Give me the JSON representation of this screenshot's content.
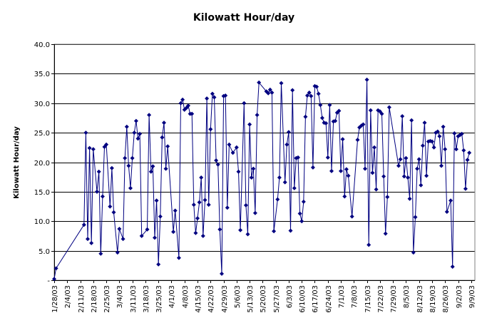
{
  "chart_data": {
    "type": "line",
    "title": "Kilowatt Hour/day",
    "xlabel": "",
    "ylabel": "Kilowatt Hour/day",
    "ylim": [
      0,
      40
    ],
    "yticks": [
      "-",
      "5.0",
      "10.0",
      "15.0",
      "20.0",
      "25.0",
      "30.0",
      "35.0",
      "40.0"
    ],
    "yticks_values": [
      0,
      5,
      10,
      15,
      20,
      25,
      30,
      35,
      40
    ],
    "x_start": "2003-01-28",
    "x_end": "2003-09-11",
    "xticks": [
      "1/28/03",
      "2/4/03",
      "2/11/03",
      "2/18/03",
      "2/25/03",
      "3/4/03",
      "3/11/03",
      "3/18/03",
      "3/25/03",
      "4/1/03",
      "4/8/03",
      "4/15/03",
      "4/22/03",
      "4/29/03",
      "5/6/03",
      "5/13/03",
      "5/20/03",
      "5/27/03",
      "6/3/03",
      "6/10/03",
      "6/17/03",
      "6/24/03",
      "7/1/03",
      "7/8/03",
      "7/15/03",
      "7/22/03",
      "7/29/03",
      "8/5/03",
      "8/12/03",
      "8/19/03",
      "8/26/03",
      "9/2/03",
      "9/9/03"
    ],
    "xticks_dates": [
      "2003-01-28",
      "2003-02-04",
      "2003-02-11",
      "2003-02-18",
      "2003-02-25",
      "2003-03-04",
      "2003-03-11",
      "2003-03-18",
      "2003-03-25",
      "2003-04-01",
      "2003-04-08",
      "2003-04-15",
      "2003-04-22",
      "2003-04-29",
      "2003-05-06",
      "2003-05-13",
      "2003-05-20",
      "2003-05-27",
      "2003-06-03",
      "2003-06-10",
      "2003-06-17",
      "2003-06-24",
      "2003-07-01",
      "2003-07-08",
      "2003-07-15",
      "2003-07-22",
      "2003-07-29",
      "2003-08-05",
      "2003-08-12",
      "2003-08-19",
      "2003-08-26",
      "2003-09-02",
      "2003-09-09"
    ],
    "grid": true,
    "legend": "none",
    "series": [
      {
        "color": "#000080",
        "marker": "diamond",
        "points": [
          [
            "2003-01-28",
            0.2
          ],
          [
            "2003-01-29",
            2.0
          ],
          [
            "2003-02-13",
            9.4
          ],
          [
            "2003-02-14",
            25.0
          ],
          [
            "2003-02-15",
            7.0
          ],
          [
            "2003-02-16",
            22.4
          ],
          [
            "2003-02-17",
            6.3
          ],
          [
            "2003-02-18",
            22.2
          ],
          [
            "2003-02-20",
            15.0
          ],
          [
            "2003-02-21",
            18.4
          ],
          [
            "2003-02-22",
            4.5
          ],
          [
            "2003-02-23",
            14.2
          ],
          [
            "2003-02-24",
            22.6
          ],
          [
            "2003-02-25",
            23.0
          ],
          [
            "2003-02-27",
            12.5
          ],
          [
            "2003-02-28",
            19.0
          ],
          [
            "2003-03-01",
            11.5
          ],
          [
            "2003-03-03",
            4.7
          ],
          [
            "2003-03-04",
            8.7
          ],
          [
            "2003-03-06",
            7.0
          ],
          [
            "2003-03-07",
            20.7
          ],
          [
            "2003-03-08",
            26.0
          ],
          [
            "2003-03-09",
            19.4
          ],
          [
            "2003-03-10",
            15.6
          ],
          [
            "2003-03-11",
            20.7
          ],
          [
            "2003-03-12",
            25.0
          ],
          [
            "2003-03-13",
            27.0
          ],
          [
            "2003-03-14",
            24.0
          ],
          [
            "2003-03-15",
            24.8
          ],
          [
            "2003-03-16",
            7.5
          ],
          [
            "2003-03-19",
            8.6
          ],
          [
            "2003-03-20",
            28.0
          ],
          [
            "2003-03-21",
            18.4
          ],
          [
            "2003-03-22",
            19.3
          ],
          [
            "2003-03-23",
            7.2
          ],
          [
            "2003-03-24",
            13.5
          ],
          [
            "2003-03-25",
            2.7
          ],
          [
            "2003-03-26",
            10.8
          ],
          [
            "2003-03-27",
            24.2
          ],
          [
            "2003-03-28",
            26.7
          ],
          [
            "2003-03-29",
            18.9
          ],
          [
            "2003-03-30",
            22.7
          ],
          [
            "2003-04-02",
            8.2
          ],
          [
            "2003-04-03",
            11.8
          ],
          [
            "2003-04-05",
            3.8
          ],
          [
            "2003-04-06",
            30.0
          ],
          [
            "2003-04-07",
            30.6
          ],
          [
            "2003-04-08",
            28.9
          ],
          [
            "2003-04-09",
            29.2
          ],
          [
            "2003-04-10",
            29.6
          ],
          [
            "2003-04-11",
            28.2
          ],
          [
            "2003-04-12",
            28.2
          ],
          [
            "2003-04-13",
            12.8
          ],
          [
            "2003-04-14",
            8.0
          ],
          [
            "2003-04-15",
            10.5
          ],
          [
            "2003-04-16",
            13.2
          ],
          [
            "2003-04-17",
            17.4
          ],
          [
            "2003-04-18",
            7.5
          ],
          [
            "2003-04-19",
            13.6
          ],
          [
            "2003-04-20",
            30.8
          ],
          [
            "2003-04-21",
            12.8
          ],
          [
            "2003-04-22",
            25.6
          ],
          [
            "2003-04-23",
            31.6
          ],
          [
            "2003-04-24",
            31.0
          ],
          [
            "2003-04-25",
            20.3
          ],
          [
            "2003-04-26",
            19.6
          ],
          [
            "2003-04-27",
            8.6
          ],
          [
            "2003-04-28",
            1.1
          ],
          [
            "2003-04-29",
            31.2
          ],
          [
            "2003-04-30",
            31.3
          ],
          [
            "2003-05-01",
            12.3
          ],
          [
            "2003-05-02",
            23.0
          ],
          [
            "2003-05-04",
            21.6
          ],
          [
            "2003-05-06",
            22.5
          ],
          [
            "2003-05-07",
            18.4
          ],
          [
            "2003-05-08",
            8.5
          ],
          [
            "2003-05-10",
            30.0
          ],
          [
            "2003-05-11",
            12.7
          ],
          [
            "2003-05-12",
            7.8
          ],
          [
            "2003-05-13",
            26.4
          ],
          [
            "2003-05-14",
            17.4
          ],
          [
            "2003-05-15",
            18.9
          ],
          [
            "2003-05-16",
            11.4
          ],
          [
            "2003-05-17",
            28.0
          ],
          [
            "2003-05-18",
            33.5
          ],
          [
            "2003-05-22",
            32.0
          ],
          [
            "2003-05-23",
            31.7
          ],
          [
            "2003-05-24",
            32.3
          ],
          [
            "2003-05-25",
            31.8
          ],
          [
            "2003-05-26",
            8.3
          ],
          [
            "2003-05-28",
            13.7
          ],
          [
            "2003-05-29",
            17.4
          ],
          [
            "2003-05-30",
            33.4
          ],
          [
            "2003-06-01",
            16.6
          ],
          [
            "2003-06-02",
            23.0
          ],
          [
            "2003-06-03",
            25.1
          ],
          [
            "2003-06-04",
            8.4
          ],
          [
            "2003-06-05",
            32.2
          ],
          [
            "2003-06-06",
            15.6
          ],
          [
            "2003-06-07",
            20.7
          ],
          [
            "2003-06-08",
            20.8
          ],
          [
            "2003-06-09",
            11.3
          ],
          [
            "2003-06-10",
            10.0
          ],
          [
            "2003-06-11",
            13.3
          ],
          [
            "2003-06-12",
            27.7
          ],
          [
            "2003-06-13",
            31.3
          ],
          [
            "2003-06-14",
            31.8
          ],
          [
            "2003-06-15",
            31.2
          ],
          [
            "2003-06-16",
            19.1
          ],
          [
            "2003-06-17",
            32.9
          ],
          [
            "2003-06-18",
            32.8
          ],
          [
            "2003-06-19",
            31.6
          ],
          [
            "2003-06-20",
            29.7
          ],
          [
            "2003-06-21",
            27.5
          ],
          [
            "2003-06-22",
            26.7
          ],
          [
            "2003-06-23",
            26.6
          ],
          [
            "2003-06-24",
            20.8
          ],
          [
            "2003-06-25",
            29.7
          ],
          [
            "2003-06-26",
            18.5
          ],
          [
            "2003-06-27",
            26.9
          ],
          [
            "2003-06-28",
            27.0
          ],
          [
            "2003-06-29",
            28.4
          ],
          [
            "2003-06-30",
            28.7
          ],
          [
            "2003-07-01",
            18.5
          ],
          [
            "2003-07-02",
            23.9
          ],
          [
            "2003-07-03",
            14.2
          ],
          [
            "2003-07-04",
            18.8
          ],
          [
            "2003-07-05",
            17.7
          ],
          [
            "2003-07-07",
            10.8
          ],
          [
            "2003-07-10",
            23.8
          ],
          [
            "2003-07-11",
            25.9
          ],
          [
            "2003-07-12",
            26.2
          ],
          [
            "2003-07-13",
            26.4
          ],
          [
            "2003-07-14",
            18.9
          ],
          [
            "2003-07-15",
            34.0
          ],
          [
            "2003-07-16",
            6.0
          ],
          [
            "2003-07-17",
            28.8
          ],
          [
            "2003-07-18",
            18.2
          ],
          [
            "2003-07-19",
            22.5
          ],
          [
            "2003-07-20",
            15.4
          ],
          [
            "2003-07-21",
            28.8
          ],
          [
            "2003-07-22",
            28.6
          ],
          [
            "2003-07-23",
            28.2
          ],
          [
            "2003-07-24",
            17.6
          ],
          [
            "2003-07-25",
            7.9
          ],
          [
            "2003-07-26",
            14.1
          ],
          [
            "2003-07-27",
            29.3
          ],
          [
            "2003-08-01",
            19.4
          ],
          [
            "2003-08-02",
            20.5
          ],
          [
            "2003-08-03",
            27.8
          ],
          [
            "2003-08-04",
            17.6
          ],
          [
            "2003-08-05",
            20.7
          ],
          [
            "2003-08-06",
            17.4
          ],
          [
            "2003-08-07",
            13.8
          ],
          [
            "2003-08-08",
            27.1
          ],
          [
            "2003-08-09",
            4.7
          ],
          [
            "2003-08-10",
            10.7
          ],
          [
            "2003-08-11",
            18.9
          ],
          [
            "2003-08-12",
            20.5
          ],
          [
            "2003-08-13",
            16.1
          ],
          [
            "2003-08-14",
            22.8
          ],
          [
            "2003-08-15",
            26.7
          ],
          [
            "2003-08-16",
            17.7
          ],
          [
            "2003-08-17",
            23.5
          ],
          [
            "2003-08-18",
            23.6
          ],
          [
            "2003-08-19",
            23.5
          ],
          [
            "2003-08-20",
            22.5
          ],
          [
            "2003-08-21",
            25.0
          ],
          [
            "2003-08-22",
            25.2
          ],
          [
            "2003-08-23",
            24.4
          ],
          [
            "2003-08-24",
            19.4
          ],
          [
            "2003-08-25",
            26.0
          ],
          [
            "2003-08-26",
            22.2
          ],
          [
            "2003-08-27",
            11.6
          ],
          [
            "2003-08-29",
            13.5
          ],
          [
            "2003-08-30",
            2.3
          ],
          [
            "2003-08-31",
            24.9
          ],
          [
            "2003-09-01",
            22.2
          ],
          [
            "2003-09-02",
            24.4
          ],
          [
            "2003-09-03",
            24.6
          ],
          [
            "2003-09-04",
            24.8
          ],
          [
            "2003-09-05",
            22.0
          ],
          [
            "2003-09-06",
            15.5
          ],
          [
            "2003-09-07",
            20.4
          ],
          [
            "2003-09-08",
            21.6
          ]
        ]
      }
    ]
  }
}
